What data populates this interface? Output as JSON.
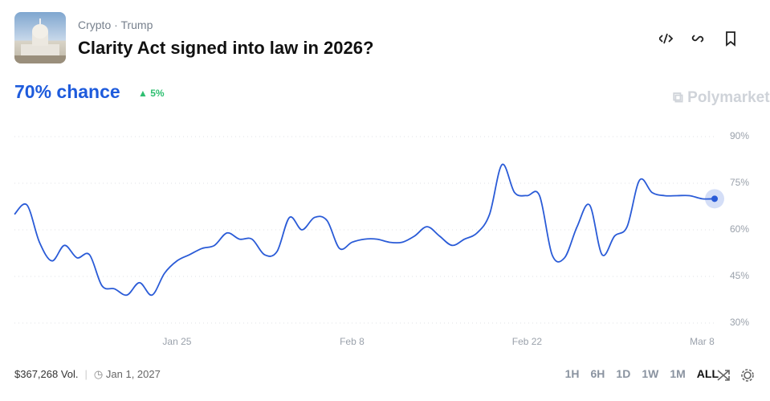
{
  "header": {
    "categories": [
      "Crypto",
      "Trump"
    ],
    "title": "Clarity Act signed into law in 2026?",
    "chance": "70% chance",
    "change": "5%",
    "brand": "Polymarket"
  },
  "chart_data": {
    "type": "line",
    "x": [
      "Jan 12",
      "Jan 13",
      "Jan 14",
      "Jan 15",
      "Jan 16",
      "Jan 17",
      "Jan 18",
      "Jan 19",
      "Jan 20",
      "Jan 21",
      "Jan 22",
      "Jan 23",
      "Jan 24",
      "Jan 25",
      "Jan 26",
      "Jan 27",
      "Jan 28",
      "Jan 29",
      "Jan 30",
      "Jan 31",
      "Feb 1",
      "Feb 2",
      "Feb 3",
      "Feb 4",
      "Feb 5",
      "Feb 6",
      "Feb 7",
      "Feb 8",
      "Feb 9",
      "Feb 10",
      "Feb 11",
      "Feb 12",
      "Feb 13",
      "Feb 14",
      "Feb 15",
      "Feb 16",
      "Feb 17",
      "Feb 18",
      "Feb 19",
      "Feb 20",
      "Feb 21",
      "Feb 22",
      "Feb 23",
      "Feb 24",
      "Feb 25",
      "Feb 26",
      "Feb 27",
      "Feb 28",
      "Mar 1",
      "Mar 2",
      "Mar 3",
      "Mar 4",
      "Mar 5",
      "Mar 6",
      "Mar 7",
      "Mar 8",
      "Mar 9"
    ],
    "series": [
      {
        "name": "Yes",
        "color": "#2a5bd7",
        "values": [
          65,
          68,
          56,
          50,
          55,
          51,
          52,
          42,
          41,
          39,
          43,
          39,
          46,
          50,
          52,
          54,
          55,
          59,
          57,
          57,
          52,
          53,
          64,
          60,
          64,
          63,
          54,
          56,
          57,
          57,
          56,
          56,
          58,
          61,
          58,
          55,
          57,
          59,
          65,
          81,
          72,
          71,
          71,
          52,
          51,
          61,
          68,
          52,
          58,
          61,
          76,
          72,
          71,
          71,
          71,
          70,
          70
        ]
      }
    ],
    "ylim": [
      25,
      95
    ],
    "yticks": [
      {
        "value": 30,
        "label": "30%"
      },
      {
        "value": 45,
        "label": "45%"
      },
      {
        "value": 60,
        "label": "60%"
      },
      {
        "value": 75,
        "label": "75%"
      },
      {
        "value": 90,
        "label": "90%"
      }
    ],
    "xticks": [
      "Jan 25",
      "Feb 8",
      "Feb 22",
      "Mar 8"
    ],
    "grid": true
  },
  "footer": {
    "volume": "$367,268 Vol.",
    "end_date": "Jan 1, 2027",
    "ranges": [
      "1H",
      "6H",
      "1D",
      "1W",
      "1M",
      "ALL"
    ],
    "selected": "ALL"
  }
}
